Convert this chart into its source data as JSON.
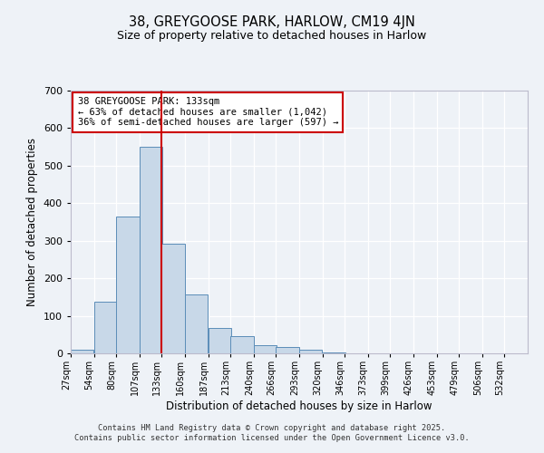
{
  "title_line1": "38, GREYGOOSE PARK, HARLOW, CM19 4JN",
  "title_line2": "Size of property relative to detached houses in Harlow",
  "xlabel": "Distribution of detached houses by size in Harlow",
  "ylabel": "Number of detached properties",
  "annotation_line1": "38 GREYGOOSE PARK: 133sqm",
  "annotation_line2": "← 63% of detached houses are smaller (1,042)",
  "annotation_line3": "36% of semi-detached houses are larger (597) →",
  "reference_line_x": 133,
  "bin_edges": [
    27,
    54,
    80,
    107,
    133,
    160,
    187,
    213,
    240,
    266,
    293,
    320,
    346,
    373,
    399,
    426,
    453,
    479,
    506,
    532,
    559
  ],
  "bar_heights": [
    10,
    137,
    365,
    550,
    293,
    158,
    68,
    45,
    22,
    16,
    10,
    3,
    0,
    0,
    0,
    0,
    0,
    0,
    0,
    0
  ],
  "bar_color": "#c8d8e8",
  "bar_edge_color": "#5b8db8",
  "ref_line_color": "#cc0000",
  "annotation_box_color": "#cc0000",
  "background_color": "#eef2f7",
  "grid_color": "#ffffff",
  "ylim": [
    0,
    700
  ],
  "yticks": [
    0,
    100,
    200,
    300,
    400,
    500,
    600,
    700
  ],
  "footer_line1": "Contains HM Land Registry data © Crown copyright and database right 2025.",
  "footer_line2": "Contains public sector information licensed under the Open Government Licence v3.0."
}
